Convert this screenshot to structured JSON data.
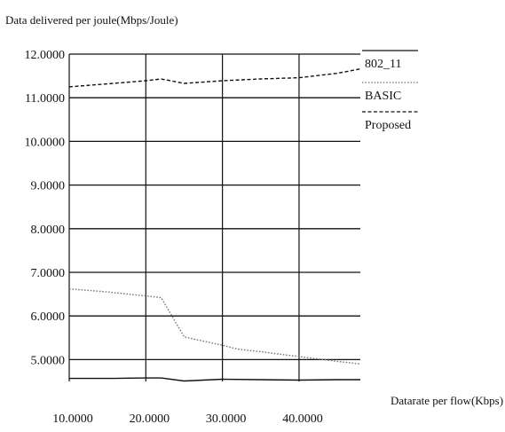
{
  "chart_data": {
    "type": "line",
    "title": "",
    "ylabel": "Data delivered per joule(Mbps/Joule)",
    "xlabel": "Datarate per flow(Kbps)",
    "xlim": [
      10,
      48
    ],
    "ylim": [
      4.5,
      12
    ],
    "x_ticks": [
      "10.0000",
      "20.0000",
      "30.0000",
      "40.0000"
    ],
    "y_ticks": [
      "12.0000",
      "11.0000",
      "10.0000",
      "9.0000",
      "8.0000",
      "7.0000",
      "6.0000",
      "5.0000"
    ],
    "grid": "horizontal and vertical",
    "legend_position": "right",
    "series": [
      {
        "name": "802_11",
        "style": "solid",
        "color": "#111111",
        "x": [
          10,
          15,
          20,
          22,
          25,
          30,
          35,
          40,
          45,
          48
        ],
        "y": [
          4.57,
          4.57,
          4.58,
          4.58,
          4.51,
          4.55,
          4.54,
          4.53,
          4.54,
          4.54
        ]
      },
      {
        "name": "BASIC",
        "style": "dotted",
        "color": "#777777",
        "x": [
          10,
          15,
          20,
          22,
          25,
          30,
          32,
          35,
          40,
          45,
          48
        ],
        "y": [
          6.62,
          6.55,
          6.46,
          6.42,
          5.52,
          5.33,
          5.24,
          5.18,
          5.07,
          4.96,
          4.9
        ]
      },
      {
        "name": "Proposed",
        "style": "dashed",
        "color": "#111111",
        "x": [
          10,
          15,
          20,
          22,
          25,
          30,
          35,
          40,
          45,
          48
        ],
        "y": [
          11.25,
          11.32,
          11.39,
          11.43,
          11.33,
          11.39,
          11.43,
          11.46,
          11.56,
          11.66
        ]
      }
    ]
  }
}
